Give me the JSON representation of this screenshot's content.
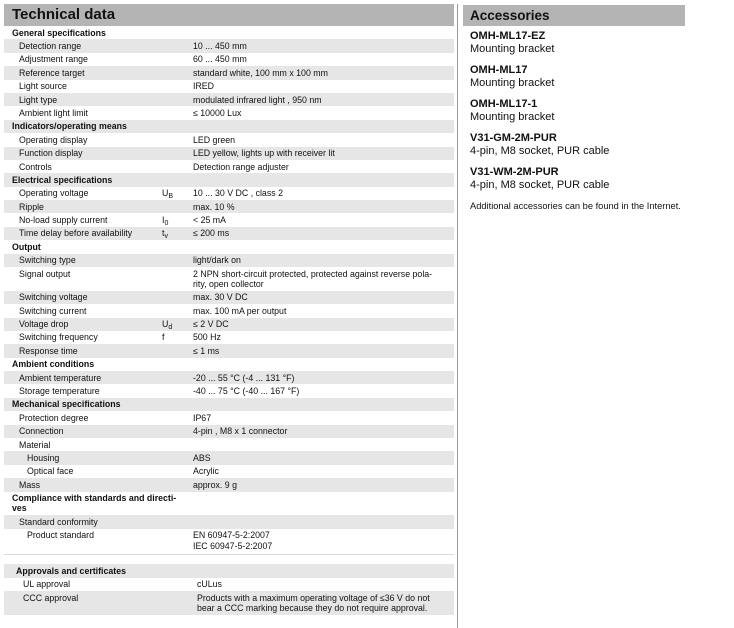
{
  "technical": {
    "title": "Technical data",
    "sections": [
      {
        "heading": [
          "General specifications"
        ],
        "rows": [
          {
            "label": "Detection range",
            "value": [
              "10 ... 450 mm"
            ]
          },
          {
            "label": "Adjustment range",
            "value": [
              "60 ... 450 mm"
            ]
          },
          {
            "label": "Reference target",
            "value": [
              "standard white, 100 mm x 100 mm"
            ]
          },
          {
            "label": "Light source",
            "value": [
              "IRED"
            ]
          },
          {
            "label": "Light type",
            "value": [
              "modulated infrared light , 950 nm"
            ]
          },
          {
            "label": "Ambient light limit",
            "value": [
              "≤ 10000 Lux"
            ]
          }
        ]
      },
      {
        "heading": [
          "Indicators/operating means"
        ],
        "rows": [
          {
            "label": "Operating display",
            "value": [
              "LED green"
            ]
          },
          {
            "label": "Function display",
            "value": [
              "LED yellow, lights up with receiver lit"
            ]
          },
          {
            "label": "Controls",
            "value": [
              "Detection range  adjuster"
            ]
          }
        ]
      },
      {
        "heading": [
          "Electrical specifications"
        ],
        "rows": [
          {
            "label": "Operating voltage",
            "symbol": "U",
            "symbol_sub": "B",
            "value": [
              "10 ... 30 V DC , class 2"
            ]
          },
          {
            "label": "Ripple",
            "value": [
              "max. 10  %"
            ]
          },
          {
            "label": "No-load supply current",
            "symbol": "I",
            "symbol_sub": "0",
            "value": [
              "< 25 mA"
            ]
          },
          {
            "label": "Time delay before availability",
            "symbol": "t",
            "symbol_sub": "v",
            "value": [
              "≤ 200 ms"
            ]
          }
        ]
      },
      {
        "heading": [
          "Output"
        ],
        "rows": [
          {
            "label": "Switching type",
            "value": [
              "light/dark on"
            ]
          },
          {
            "label": "Signal output",
            "value": [
              "2 NPN short-circuit protected, protected against reverse pola-",
              "rity, open collector"
            ]
          },
          {
            "label": "Switching voltage",
            "value": [
              "max. 30 V DC"
            ]
          },
          {
            "label": "Switching current",
            "value": [
              "max. 100 mA per output"
            ]
          },
          {
            "label": "Voltage drop",
            "symbol": "U",
            "symbol_sub": "d",
            "value": [
              "≤ 2 V DC"
            ]
          },
          {
            "label": "Switching frequency",
            "symbol": "f",
            "value": [
              "500 Hz"
            ]
          },
          {
            "label": "Response time",
            "value": [
              "≤ 1 ms"
            ]
          }
        ]
      },
      {
        "heading": [
          "Ambient conditions"
        ],
        "rows": [
          {
            "label": "Ambient temperature",
            "value": [
              "-20 ... 55 °C (-4 ... 131 °F)"
            ]
          },
          {
            "label": "Storage temperature",
            "value": [
              "-40 ... 75 °C (-40 ... 167 °F)"
            ]
          }
        ]
      },
      {
        "heading": [
          "Mechanical specifications"
        ],
        "rows": [
          {
            "label": "Protection degree",
            "value": [
              "IP67"
            ]
          },
          {
            "label": "Connection",
            "value": [
              "4-pin ,  M8 x 1 connector"
            ]
          },
          {
            "label": "Material",
            "value": [
              ""
            ]
          },
          {
            "label": "Housing",
            "indent": 2,
            "value": [
              "ABS"
            ]
          },
          {
            "label": "Optical face",
            "indent": 2,
            "value": [
              "Acrylic"
            ]
          },
          {
            "label": "Mass",
            "value": [
              "approx. 9 g"
            ]
          }
        ]
      },
      {
        "heading": [
          "Compliance with standards and directi-",
          "ves"
        ],
        "rows": [
          {
            "label": "Standard conformity",
            "value": [
              ""
            ]
          },
          {
            "label": "Product standard",
            "indent": 2,
            "value": [
              "EN 60947-5-2:2007",
              "IEC 60947-5-2:2007"
            ]
          }
        ]
      }
    ],
    "approvals": {
      "heading": [
        "Approvals and certificates"
      ],
      "rows": [
        {
          "label": "UL approval",
          "value": [
            "cULus"
          ]
        },
        {
          "label": "CCC approval",
          "value": [
            "Products with a maximum operating voltage of ≤36 V do not",
            "bear a CCC marking because they do not require approval."
          ]
        }
      ]
    }
  },
  "accessories": {
    "title": "Accessories",
    "items": [
      {
        "name": "OMH-ML17-EZ",
        "description": "Mounting bracket"
      },
      {
        "name": "OMH-ML17",
        "description": "Mounting bracket"
      },
      {
        "name": "OMH-ML17-1",
        "description": "Mounting bracket"
      },
      {
        "name": "V31-GM-2M-PUR",
        "description": "4-pin, M8 socket, PUR cable"
      },
      {
        "name": "V31-WM-2M-PUR",
        "description": "4-pin, M8 socket, PUR cable"
      }
    ],
    "note": "Additional accessories can be found in the Internet."
  }
}
